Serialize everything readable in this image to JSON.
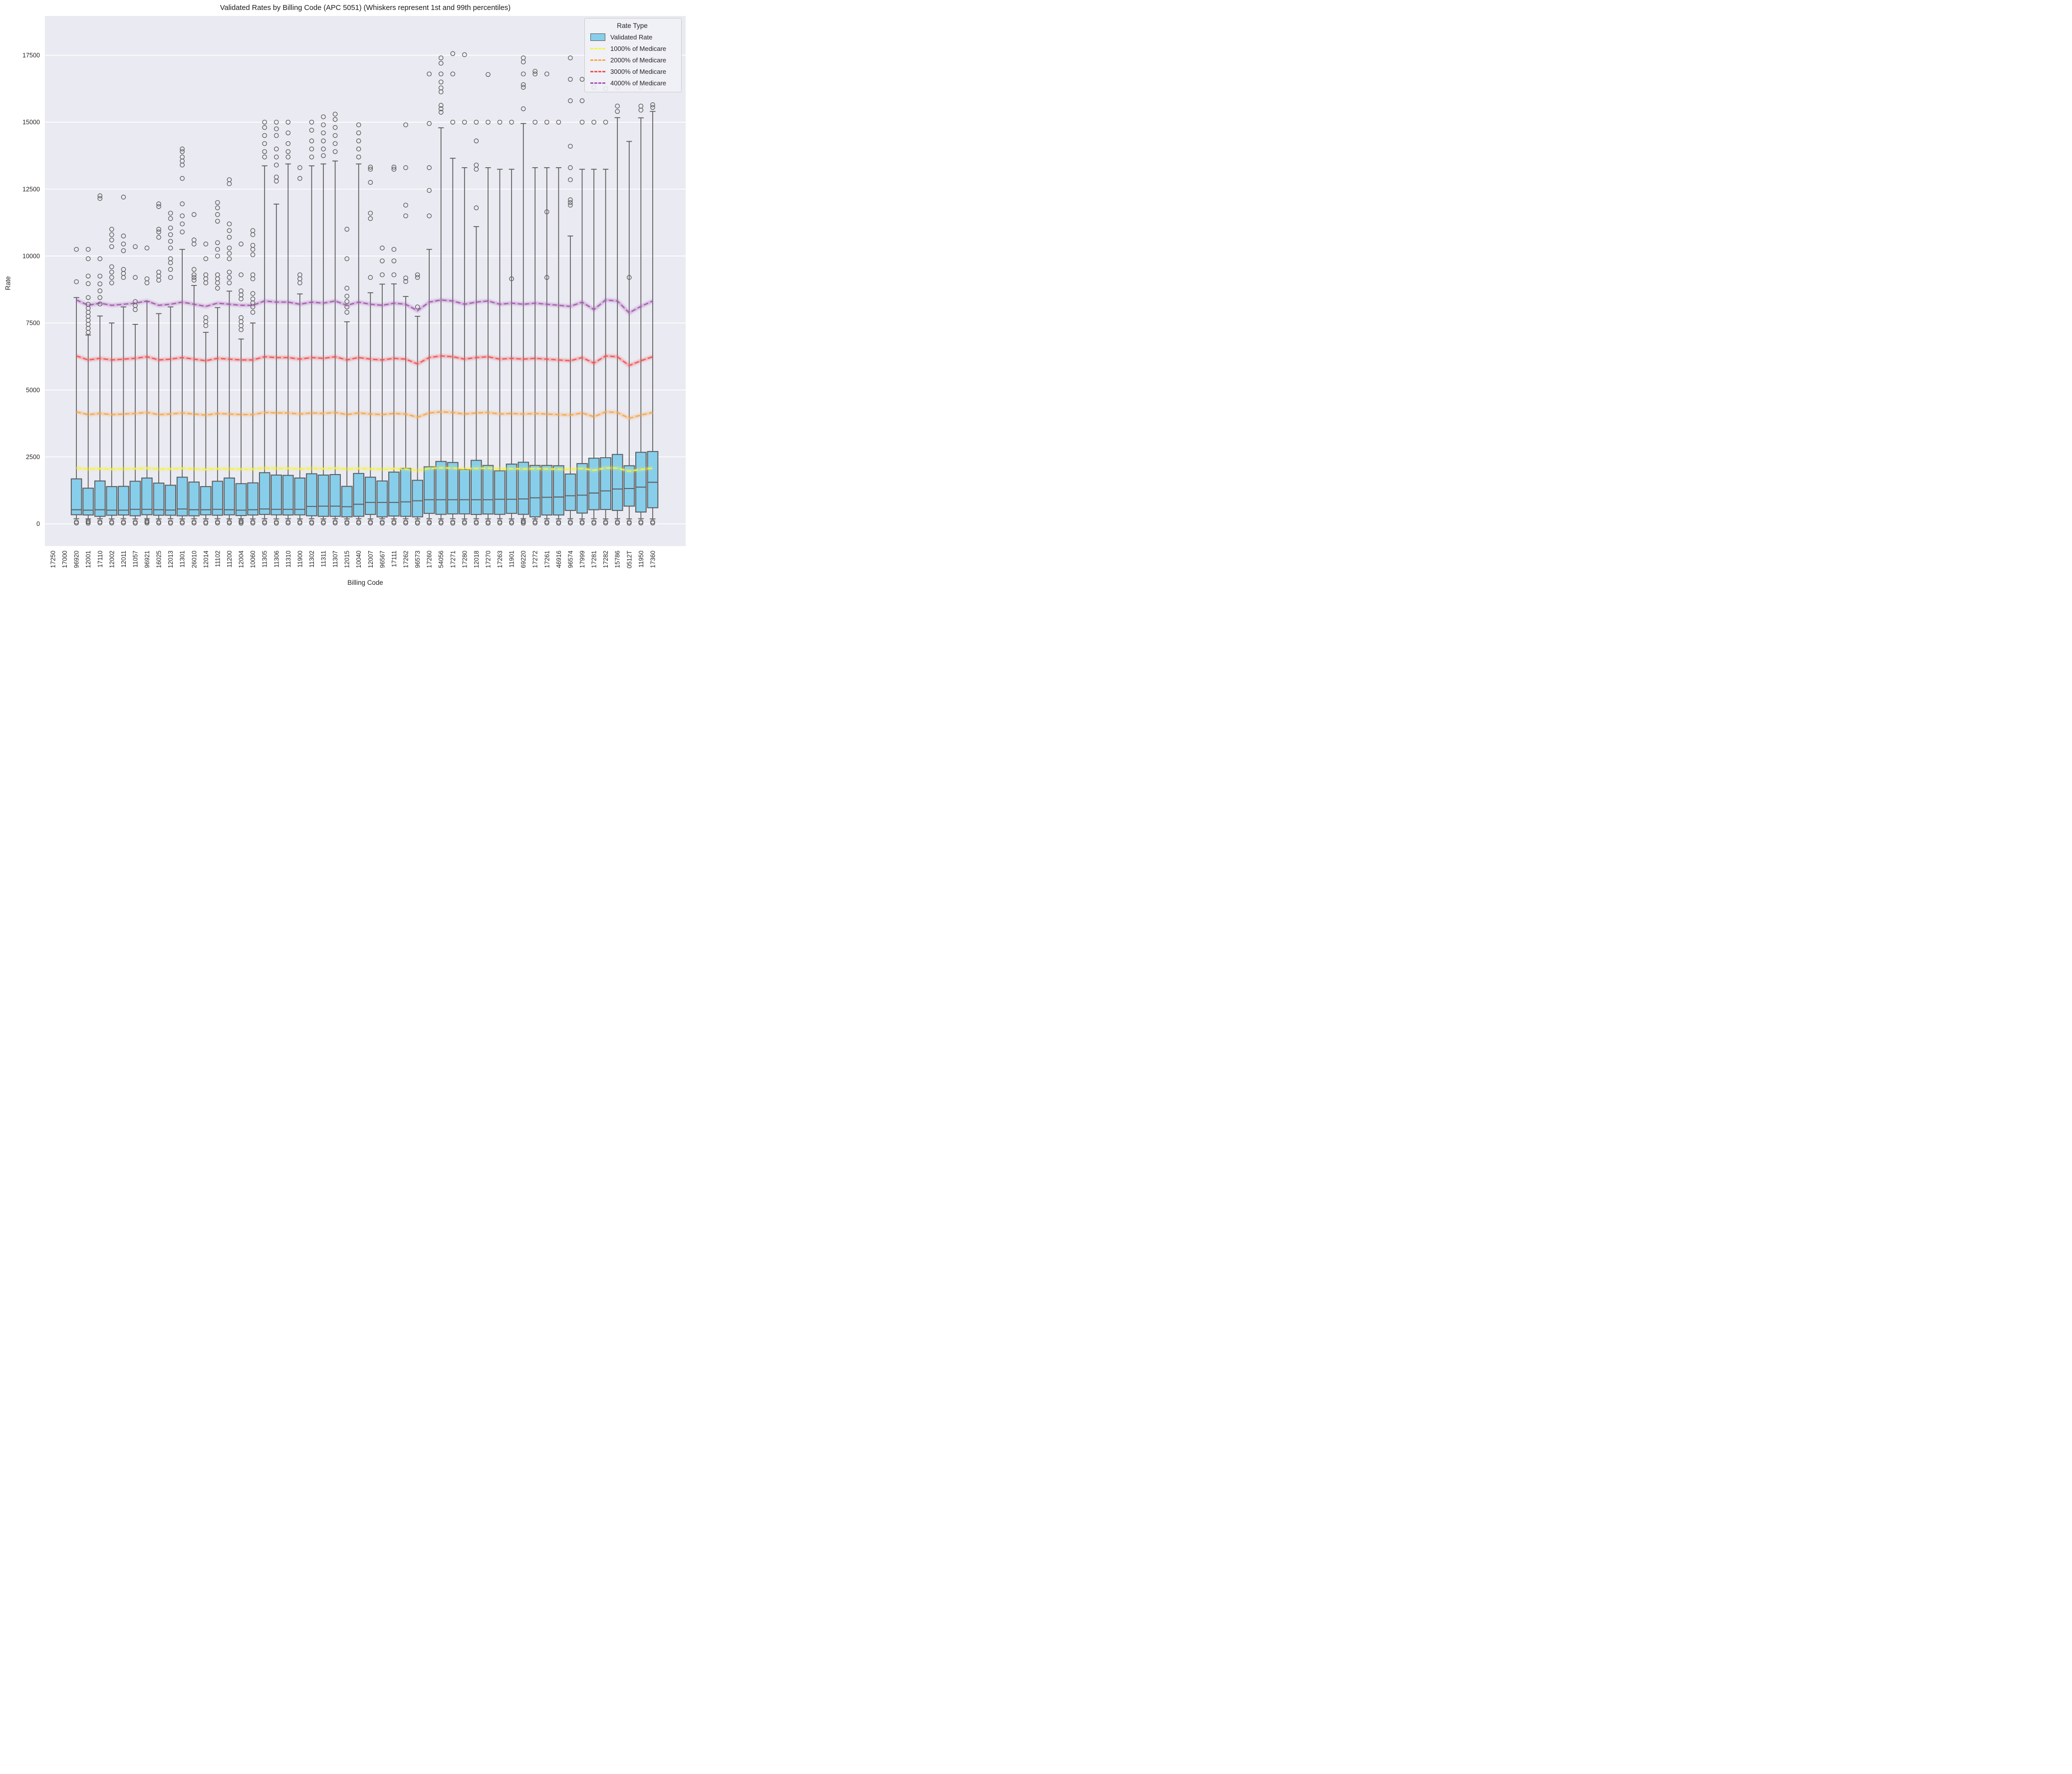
{
  "colors": {
    "figure_bg": "#ffffff",
    "axes_bg": "#eaeaf2",
    "grid": "#ffffff",
    "box_fill": "#87ceeb",
    "edge": "#5c5c5c",
    "text": "#262626"
  },
  "chart_data": {
    "type": "box",
    "title": "Validated Rates by Billing Code (APC 5051) (Whiskers represent 1st and 99th percentiles)",
    "xlabel": "Billing Code",
    "ylabel": "Rate",
    "ylim": [
      -830,
      18970
    ],
    "yticks": [
      0,
      2500,
      5000,
      7500,
      10000,
      12500,
      15000,
      17500
    ],
    "grid": true,
    "whisker_note": "whiskers are 1st and 99th percentiles",
    "legend": {
      "title": "Rate Type",
      "box_item": "Validated Rate",
      "position": "upper right",
      "line_items": [
        {
          "label": "1000% of Medicare",
          "mult": 10,
          "color": "#f6f440"
        },
        {
          "label": "2000% of Medicare",
          "mult": 20,
          "color": "#f9a64a"
        },
        {
          "label": "3000% of Medicare",
          "mult": 30,
          "color": "#f45353"
        },
        {
          "label": "4000% of Medicare",
          "mult": 40,
          "color": "#a75ab2"
        }
      ]
    },
    "medicare_base": [
      null,
      null,
      209,
      204,
      206,
      204,
      205,
      206,
      208,
      204,
      205,
      207,
      205,
      203,
      206,
      205,
      204,
      204,
      208,
      207,
      207,
      205,
      207,
      206,
      208,
      204,
      207,
      205,
      204,
      206,
      205,
      199,
      207,
      209,
      208,
      205,
      207,
      208,
      205,
      206,
      205,
      206,
      205,
      204,
      203,
      207,
      200,
      209,
      208,
      197,
      203,
      208
    ],
    "categories": [
      {
        "code": "17250",
        "box": null,
        "wlo": null,
        "whi": null,
        "out_hi": [],
        "out_lo": []
      },
      {
        "code": "17000",
        "box": null,
        "wlo": null,
        "whi": null,
        "out_hi": [],
        "out_lo": []
      },
      {
        "code": "96920",
        "box": [
          340,
          525,
          1680
        ],
        "wlo": 190,
        "whi": 8450,
        "out_hi": [
          9040,
          10250
        ],
        "out_lo": [
          30,
          70
        ]
      },
      {
        "code": "12001",
        "box": [
          330,
          510,
          1330
        ],
        "wlo": 185,
        "whi": 7050,
        "out_hi": [
          7150,
          7300,
          7450,
          7600,
          7750,
          7900,
          8050,
          8200,
          8450,
          8970,
          9250,
          9900,
          10250
        ],
        "out_lo": [
          25,
          65,
          100
        ]
      },
      {
        "code": "17110",
        "box": [
          280,
          525,
          1600
        ],
        "wlo": 190,
        "whi": 7760,
        "out_hi": [
          8210,
          8450,
          8700,
          8960,
          9250,
          9900,
          12150,
          12250
        ],
        "out_lo": [
          35,
          75
        ]
      },
      {
        "code": "12002",
        "box": [
          320,
          510,
          1390
        ],
        "wlo": 185,
        "whi": 7500,
        "out_hi": [
          9000,
          9200,
          9400,
          9600,
          10350,
          10600,
          10800,
          11000
        ],
        "out_lo": [
          30,
          70
        ]
      },
      {
        "code": "12011",
        "box": [
          330,
          510,
          1400
        ],
        "wlo": 190,
        "whi": 8100,
        "out_hi": [
          9200,
          9350,
          9500,
          10200,
          10450,
          10750,
          12200
        ],
        "out_lo": [
          30,
          70
        ]
      },
      {
        "code": "11057",
        "box": [
          300,
          540,
          1590
        ],
        "wlo": 185,
        "whi": 7450,
        "out_hi": [
          8000,
          8150,
          8300,
          9200,
          10350
        ],
        "out_lo": [
          25,
          65
        ]
      },
      {
        "code": "96921",
        "box": [
          340,
          540,
          1710
        ],
        "wlo": 190,
        "whi": 8300,
        "out_hi": [
          9000,
          9150,
          10300
        ],
        "out_lo": [
          30,
          70,
          105
        ]
      },
      {
        "code": "16025",
        "box": [
          320,
          525,
          1520
        ],
        "wlo": 185,
        "whi": 7850,
        "out_hi": [
          9100,
          9250,
          9400,
          10700,
          10900,
          11000,
          11850,
          11950
        ],
        "out_lo": [
          30,
          70
        ]
      },
      {
        "code": "12013",
        "box": [
          320,
          515,
          1440
        ],
        "wlo": 190,
        "whi": 8100,
        "out_hi": [
          9200,
          9500,
          9750,
          9900,
          10300,
          10550,
          10800,
          11050,
          11400,
          11600
        ],
        "out_lo": [
          25,
          65
        ]
      },
      {
        "code": "11301",
        "box": [
          300,
          555,
          1740
        ],
        "wlo": 185,
        "whi": 10250,
        "out_hi": [
          10900,
          11200,
          11500,
          11950,
          12900,
          13400,
          13550,
          13700,
          13900,
          14000
        ],
        "out_lo": [
          30,
          70
        ]
      },
      {
        "code": "26010",
        "box": [
          300,
          525,
          1560
        ],
        "wlo": 190,
        "whi": 8900,
        "out_hi": [
          9100,
          9200,
          9300,
          9500,
          10450,
          10600,
          11550
        ],
        "out_lo": [
          30,
          70
        ]
      },
      {
        "code": "12014",
        "box": [
          335,
          525,
          1390
        ],
        "wlo": 185,
        "whi": 7150,
        "out_hi": [
          7400,
          7550,
          7700,
          9000,
          9150,
          9300,
          9900,
          10450
        ],
        "out_lo": [
          25,
          65
        ]
      },
      {
        "code": "11102",
        "box": [
          320,
          540,
          1590
        ],
        "wlo": 190,
        "whi": 8075,
        "out_hi": [
          8800,
          9000,
          9150,
          9300,
          10000,
          10250,
          10500,
          11300,
          11550,
          11800,
          12000
        ],
        "out_lo": [
          30,
          70
        ]
      },
      {
        "code": "11200",
        "box": [
          335,
          525,
          1710
        ],
        "wlo": 185,
        "whi": 8690,
        "out_hi": [
          9000,
          9200,
          9400,
          9900,
          10100,
          10300,
          10700,
          10950,
          11200,
          12700,
          12850
        ],
        "out_lo": [
          30,
          70
        ]
      },
      {
        "code": "12004",
        "box": [
          310,
          510,
          1500
        ],
        "wlo": 190,
        "whi": 6900,
        "out_hi": [
          7250,
          7400,
          7550,
          7700,
          8400,
          8550,
          8700,
          9300,
          10450
        ],
        "out_lo": [
          25,
          65,
          100
        ]
      },
      {
        "code": "10060",
        "box": [
          330,
          525,
          1530
        ],
        "wlo": 185,
        "whi": 7500,
        "out_hi": [
          7900,
          8100,
          8250,
          8400,
          8600,
          9150,
          9300,
          10050,
          10250,
          10400,
          10800,
          10950
        ],
        "out_lo": [
          30,
          70
        ]
      },
      {
        "code": "11305",
        "box": [
          350,
          555,
          1910
        ],
        "wlo": 190,
        "whi": 13370,
        "out_hi": [
          13700,
          13900,
          14200,
          14500,
          14800,
          15000
        ],
        "out_lo": [
          30,
          70
        ]
      },
      {
        "code": "11306",
        "box": [
          335,
          540,
          1820
        ],
        "wlo": 185,
        "whi": 11940,
        "out_hi": [
          12800,
          12950,
          13400,
          13700,
          14000,
          14500,
          14750,
          15000
        ],
        "out_lo": [
          25,
          65
        ]
      },
      {
        "code": "11310",
        "box": [
          330,
          540,
          1810
        ],
        "wlo": 190,
        "whi": 13440,
        "out_hi": [
          13700,
          13900,
          14200,
          14600,
          15000
        ],
        "out_lo": [
          30,
          70
        ]
      },
      {
        "code": "11900",
        "box": [
          335,
          540,
          1710
        ],
        "wlo": 185,
        "whi": 8585,
        "out_hi": [
          9000,
          9150,
          9300,
          12900,
          13300
        ],
        "out_lo": [
          30,
          70
        ]
      },
      {
        "code": "11302",
        "box": [
          300,
          650,
          1870
        ],
        "wlo": 190,
        "whi": 13370,
        "out_hi": [
          13700,
          14000,
          14300,
          14700,
          15000
        ],
        "out_lo": [
          25,
          65
        ]
      },
      {
        "code": "11311",
        "box": [
          280,
          660,
          1820
        ],
        "wlo": 185,
        "whi": 13440,
        "out_hi": [
          13750,
          14000,
          14300,
          14600,
          14900,
          15200
        ],
        "out_lo": [
          30,
          70
        ]
      },
      {
        "code": "11307",
        "box": [
          280,
          660,
          1840
        ],
        "wlo": 190,
        "whi": 13550,
        "out_hi": [
          13900,
          14200,
          14500,
          14800,
          15100,
          15300
        ],
        "out_lo": [
          30,
          70
        ]
      },
      {
        "code": "12015",
        "box": [
          260,
          640,
          1400
        ],
        "wlo": 185,
        "whi": 7545,
        "out_hi": [
          7900,
          8100,
          8300,
          8500,
          8800,
          9900,
          11000
        ],
        "out_lo": [
          25,
          65
        ]
      },
      {
        "code": "10040",
        "box": [
          280,
          730,
          1880
        ],
        "wlo": 190,
        "whi": 13440,
        "out_hi": [
          13700,
          14000,
          14300,
          14600,
          14900
        ],
        "out_lo": [
          30,
          70
        ]
      },
      {
        "code": "12007",
        "box": [
          350,
          800,
          1740
        ],
        "wlo": 185,
        "whi": 8630,
        "out_hi": [
          9200,
          11400,
          11600,
          12750,
          13240,
          13320
        ],
        "out_lo": [
          30,
          70
        ]
      },
      {
        "code": "96567",
        "box": [
          260,
          800,
          1600
        ],
        "wlo": 190,
        "whi": 8950,
        "out_hi": [
          9300,
          9820,
          10300
        ],
        "out_lo": [
          25,
          65
        ]
      },
      {
        "code": "17111",
        "box": [
          290,
          800,
          1930
        ],
        "wlo": 185,
        "whi": 8960,
        "out_hi": [
          9300,
          9820,
          10250,
          13240,
          13320
        ],
        "out_lo": [
          30,
          70
        ]
      },
      {
        "code": "17262",
        "box": [
          280,
          820,
          2070
        ],
        "wlo": 190,
        "whi": 8490,
        "out_hi": [
          9050,
          9180,
          11500,
          11900,
          13300,
          14900
        ],
        "out_lo": [
          30,
          70
        ]
      },
      {
        "code": "96573",
        "box": [
          260,
          860,
          1625
        ],
        "wlo": 185,
        "whi": 7750,
        "out_hi": [
          8100,
          9200,
          9300
        ],
        "out_lo": [
          25,
          65
        ]
      },
      {
        "code": "17260",
        "box": [
          390,
          900,
          2130
        ],
        "wlo": 190,
        "whi": 10250,
        "out_hi": [
          11500,
          12450,
          13300,
          14950,
          16800
        ],
        "out_lo": [
          30,
          70
        ]
      },
      {
        "code": "54056",
        "box": [
          355,
          900,
          2330
        ],
        "wlo": 185,
        "whi": 14790,
        "out_hi": [
          15370,
          15500,
          15630,
          16130,
          16280,
          16500,
          16800,
          17200,
          17400
        ],
        "out_lo": [
          30,
          70
        ]
      },
      {
        "code": "17271",
        "box": [
          370,
          900,
          2290
        ],
        "wlo": 190,
        "whi": 13650,
        "out_hi": [
          15000,
          16800,
          17560
        ],
        "out_lo": [
          25,
          65
        ]
      },
      {
        "code": "17280",
        "box": [
          370,
          900,
          2030
        ],
        "wlo": 185,
        "whi": 13300,
        "out_hi": [
          15000,
          17520
        ],
        "out_lo": [
          30,
          70
        ]
      },
      {
        "code": "12018",
        "box": [
          350,
          900,
          2370
        ],
        "wlo": 190,
        "whi": 11100,
        "out_hi": [
          11800,
          13240,
          13400,
          14300,
          15000
        ],
        "out_lo": [
          30,
          70
        ]
      },
      {
        "code": "17270",
        "box": [
          365,
          900,
          2180
        ],
        "wlo": 185,
        "whi": 13300,
        "out_hi": [
          15000,
          16780
        ],
        "out_lo": [
          25,
          65
        ]
      },
      {
        "code": "17263",
        "box": [
          355,
          915,
          1980
        ],
        "wlo": 190,
        "whi": 13240,
        "out_hi": [
          15000
        ],
        "out_lo": [
          30,
          70
        ]
      },
      {
        "code": "11901",
        "box": [
          390,
          915,
          2230
        ],
        "wlo": 185,
        "whi": 13240,
        "out_hi": [
          9150,
          15000
        ],
        "out_lo": [
          30,
          70
        ]
      },
      {
        "code": "69220",
        "box": [
          355,
          930,
          2300
        ],
        "wlo": 190,
        "whi": 14950,
        "out_hi": [
          15500,
          16300,
          16400,
          16800,
          17250,
          17400
        ],
        "out_lo": [
          25,
          65,
          100
        ]
      },
      {
        "code": "17272",
        "box": [
          260,
          970,
          2180
        ],
        "wlo": 185,
        "whi": 13300,
        "out_hi": [
          15000,
          16800,
          16900
        ],
        "out_lo": [
          30,
          70
        ]
      },
      {
        "code": "17261",
        "box": [
          330,
          990,
          2180
        ],
        "wlo": 190,
        "whi": 13300,
        "out_hi": [
          9200,
          11650,
          15000,
          16800
        ],
        "out_lo": [
          30,
          70
        ]
      },
      {
        "code": "46916",
        "box": [
          330,
          1000,
          2170
        ],
        "wlo": 185,
        "whi": 13300,
        "out_hi": [
          15000
        ],
        "out_lo": [
          25,
          65
        ]
      },
      {
        "code": "96574",
        "box": [
          500,
          1050,
          1860
        ],
        "wlo": 190,
        "whi": 10750,
        "out_hi": [
          11900,
          12000,
          12100,
          12850,
          13300,
          14100,
          15800,
          16600,
          17400
        ],
        "out_lo": [
          30,
          70
        ]
      },
      {
        "code": "17999",
        "box": [
          400,
          1070,
          2250
        ],
        "wlo": 185,
        "whi": 13240,
        "out_hi": [
          15000,
          15800,
          16600
        ],
        "out_lo": [
          30,
          70
        ]
      },
      {
        "code": "17281",
        "box": [
          525,
          1150,
          2450
        ],
        "wlo": 190,
        "whi": 13240,
        "out_hi": [
          15000,
          16300
        ],
        "out_lo": [
          25,
          65
        ]
      },
      {
        "code": "17282",
        "box": [
          535,
          1230,
          2470
        ],
        "wlo": 185,
        "whi": 13240,
        "out_hi": [
          15000,
          16250
        ],
        "out_lo": [
          30,
          70
        ]
      },
      {
        "code": "15786",
        "box": [
          500,
          1300,
          2590
        ],
        "wlo": 190,
        "whi": 15170,
        "out_hi": [
          15400,
          15600,
          16300
        ],
        "out_lo": [
          30,
          70
        ]
      },
      {
        "code": "0512T",
        "box": [
          660,
          1320,
          2170
        ],
        "wlo": 185,
        "whi": 14280,
        "out_hi": [
          9200
        ],
        "out_lo": [
          25,
          65
        ]
      },
      {
        "code": "11950",
        "box": [
          440,
          1370,
          2670
        ],
        "wlo": 190,
        "whi": 15160,
        "out_hi": [
          15450,
          15600,
          16300,
          17300
        ],
        "out_lo": [
          30,
          70
        ]
      },
      {
        "code": "17360",
        "box": [
          600,
          1550,
          2700
        ],
        "wlo": 185,
        "whi": 15400,
        "out_hi": [
          15550,
          15650,
          16300,
          16400
        ],
        "out_lo": [
          30,
          70
        ]
      }
    ]
  }
}
